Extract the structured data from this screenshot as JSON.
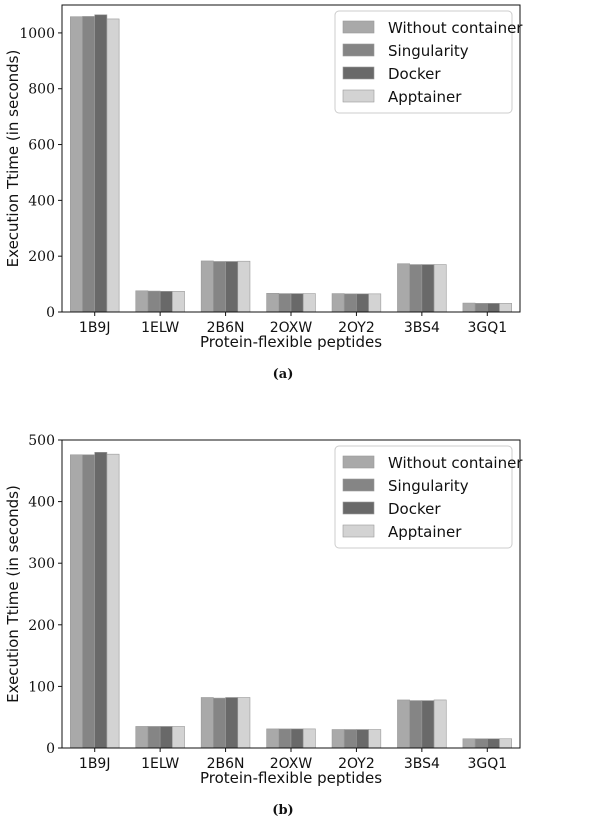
{
  "chart_data": [
    {
      "type": "bar",
      "caption": "(a)",
      "xlabel": "Protein-flexible peptides",
      "ylabel": "Execution Ttime (in seconds)",
      "ylim": [
        0,
        1100
      ],
      "yticks": [
        0,
        200,
        400,
        600,
        800,
        1000
      ],
      "categories": [
        "1B9J",
        "1ELW",
        "2B6N",
        "2OXW",
        "2OY2",
        "3BS4",
        "3GQ1"
      ],
      "legend_position": "top-right",
      "series": [
        {
          "name": "Without container",
          "color": "#a9a9a9",
          "values": [
            1058,
            76,
            183,
            67,
            66,
            173,
            32
          ]
        },
        {
          "name": "Singularity",
          "color": "#858585",
          "values": [
            1059,
            75,
            181,
            66,
            65,
            170,
            31
          ]
        },
        {
          "name": "Docker",
          "color": "#696969",
          "values": [
            1065,
            74,
            181,
            66,
            65,
            170,
            31
          ]
        },
        {
          "name": "Apptainer",
          "color": "#d3d3d3",
          "values": [
            1050,
            74,
            182,
            66,
            65,
            170,
            31
          ]
        }
      ]
    },
    {
      "type": "bar",
      "caption": "(b)",
      "xlabel": "Protein-flexible peptides",
      "ylabel": "Execution Ttime (in seconds)",
      "ylim": [
        0,
        500
      ],
      "yticks": [
        0,
        100,
        200,
        300,
        400,
        500
      ],
      "categories": [
        "1B9J",
        "1ELW",
        "2B6N",
        "2OXW",
        "2OY2",
        "3BS4",
        "3GQ1"
      ],
      "legend_position": "top-right",
      "series": [
        {
          "name": "Without container",
          "color": "#a9a9a9",
          "values": [
            476,
            35,
            82,
            31,
            30,
            78,
            15
          ]
        },
        {
          "name": "Singularity",
          "color": "#858585",
          "values": [
            476,
            35,
            81,
            31,
            30,
            77,
            15
          ]
        },
        {
          "name": "Docker",
          "color": "#696969",
          "values": [
            480,
            35,
            82,
            31,
            30,
            77,
            15
          ]
        },
        {
          "name": "Apptainer",
          "color": "#d3d3d3",
          "values": [
            477,
            35,
            82,
            31,
            30,
            78,
            15
          ]
        }
      ]
    }
  ]
}
